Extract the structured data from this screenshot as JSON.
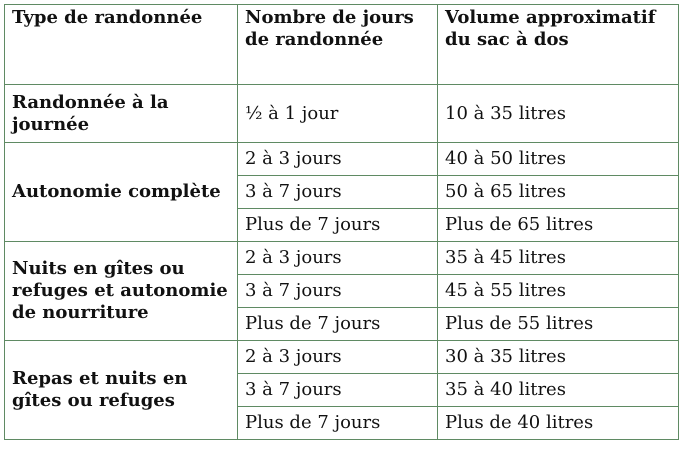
{
  "table": {
    "headers": [
      "Type de randonnée",
      "Nombre de jours de randonnée",
      "Volume approximatif du sac à dos"
    ],
    "groups": [
      {
        "type": "Randonnée à la journée",
        "rows": [
          {
            "days": "½ à 1 jour",
            "volume": "10 à 35 litres"
          }
        ]
      },
      {
        "type": "Autonomie complète",
        "rows": [
          {
            "days": "2 à 3 jours",
            "volume": "40 à 50 litres"
          },
          {
            "days": "3 à 7 jours",
            "volume": "50 à 65 litres"
          },
          {
            "days": "Plus de 7 jours",
            "volume": "Plus de 65 litres"
          }
        ]
      },
      {
        "type": "Nuits en gîtes ou refuges et autonomie de nourriture",
        "rows": [
          {
            "days": "2 à 3 jours",
            "volume": "35 à 45 litres"
          },
          {
            "days": "3 à 7 jours",
            "volume": "45 à 55 litres"
          },
          {
            "days": "Plus de 7 jours",
            "volume": "Plus de 55 litres"
          }
        ]
      },
      {
        "type": "Repas et nuits en gîtes ou refuges",
        "rows": [
          {
            "days": "2 à 3 jours",
            "volume": "30 à 35 litres"
          },
          {
            "days": "3 à 7 jours",
            "volume": "35 à 40 litres"
          },
          {
            "days": "Plus de 7 jours",
            "volume": "Plus de 40 litres"
          }
        ]
      }
    ],
    "border_color": "#5f8a63"
  }
}
